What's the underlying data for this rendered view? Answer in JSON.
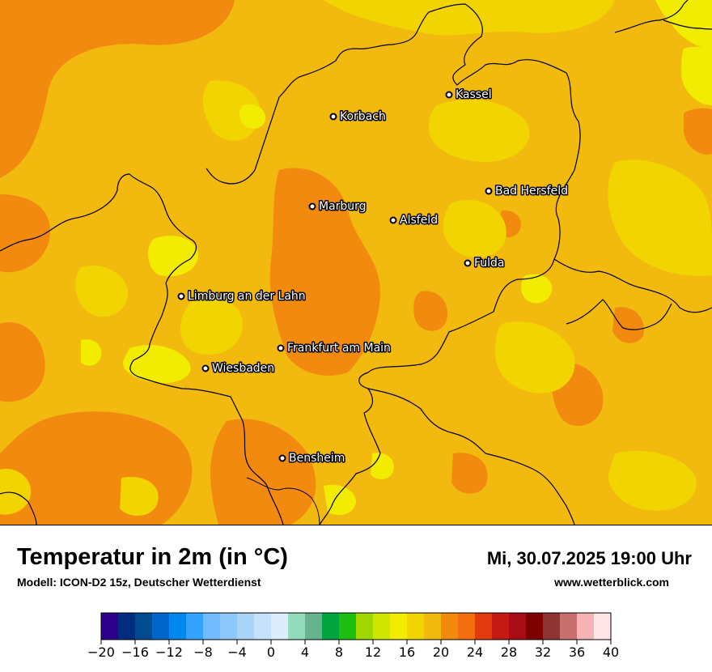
{
  "title": "Temperatur in 2m (in °C)",
  "model": "Modell: ICON-D2 15z, Deutscher Wetterdienst",
  "datetime": "Mi, 30.07.2025 19:00 Uhr",
  "website": "www.wetterblick.com",
  "map": {
    "colors": {
      "border": "#000000",
      "temp_16_18": "#f2d400",
      "temp_18_20": "#f2ec00",
      "temp_20_22": "#f2b90f",
      "temp_22_24": "#f28a10"
    },
    "cities": [
      {
        "name": "Kassel"
      },
      {
        "name": "Korbach"
      },
      {
        "name": "Bad Hersfeld"
      },
      {
        "name": "Marburg"
      },
      {
        "name": "Alsfeld"
      },
      {
        "name": "Fulda"
      },
      {
        "name": "Limburg an der Lahn"
      },
      {
        "name": "Frankfurt am Main"
      },
      {
        "name": "Wiesbaden"
      },
      {
        "name": "Bensheim"
      }
    ]
  },
  "legend": {
    "tick_labels": [
      "−20",
      "−16",
      "−12",
      "−8",
      "−4",
      "0",
      "4",
      "8",
      "12",
      "16",
      "20",
      "24",
      "28",
      "32",
      "36",
      "40"
    ],
    "colors": [
      "#2c0088",
      "#002d80",
      "#004a8f",
      "#0066cc",
      "#0088ee",
      "#33a3ff",
      "#72bbff",
      "#8ec8fa",
      "#a9d4f8",
      "#c5e2fa",
      "#dcecfb",
      "#93dcbb",
      "#66b38e",
      "#00a53f",
      "#1fbf12",
      "#9fd800",
      "#cfe600",
      "#f2ec00",
      "#f2d400",
      "#f2b90f",
      "#f28a10",
      "#f26e0e",
      "#e03a0e",
      "#c41a14",
      "#a80d14",
      "#7e0000",
      "#8e3434",
      "#c87070",
      "#f4b4b4",
      "#ffe4e8"
    ]
  }
}
